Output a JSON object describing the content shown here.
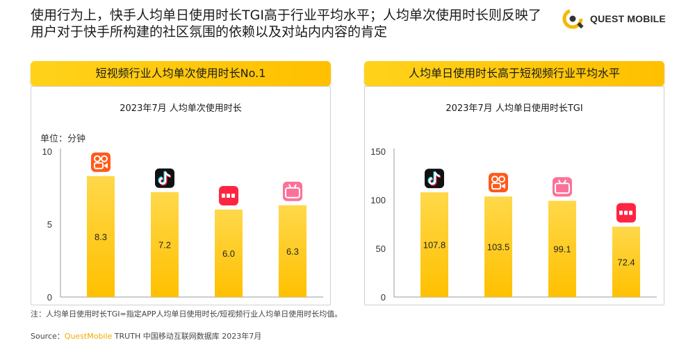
{
  "headline": "使用行为上，快手人均单日使用时长TGI高于行业平均水平；人均单次使用时长则反映了用户对于快手所构建的社区氛围的依赖以及对站内内容的肯定",
  "logo": {
    "text": "QUEST MOBILE",
    "icon": "quest-mobile-logo"
  },
  "left_panel": {
    "header": "短视频行业人均单次使用时长No.1",
    "chart_title": "2023年7月 人均单次使用时长",
    "unit": "单位：分钟"
  },
  "right_panel": {
    "header": "人均单日使用时长高于短视频行业平均水平",
    "chart_title": "2023年7月 人均单日使用时长TGI"
  },
  "note": "注：人均单日使用时长TGI=指定APP人均单日使用时长/短视频行业人均单日使用时长均值。",
  "source": {
    "prefix": "Source：",
    "brand": "QuestMobile",
    "suffix": " TRUTH 中国移动互联网数据库 2023年7月"
  },
  "colors": {
    "bar": "#ffc000",
    "bar_top": "#ffd84a",
    "pill": "#ffc000",
    "brand": "#f5a800"
  },
  "chart_data": [
    {
      "type": "bar",
      "title": "2023年7月 人均单次使用时长",
      "ylabel": "单位：分钟",
      "ylim": [
        0,
        10
      ],
      "yticks": [
        0,
        5,
        10
      ],
      "categories": [
        "kuaishou-icon",
        "douyin-icon",
        "xiaohongshu-icon",
        "bilibili-icon"
      ],
      "values": [
        8.3,
        7.2,
        6.0,
        6.3
      ],
      "data_labels": [
        "8.3",
        "7.2",
        "6.0",
        "6.3"
      ],
      "grid": false
    },
    {
      "type": "bar",
      "title": "2023年7月 人均单日使用时长TGI",
      "ylim": [
        0,
        150
      ],
      "yticks": [
        0,
        50,
        100,
        150
      ],
      "categories": [
        "douyin-icon",
        "kuaishou-icon",
        "bilibili-icon",
        "xiaohongshu-icon"
      ],
      "values": [
        107.8,
        103.5,
        99.1,
        72.4
      ],
      "data_labels": [
        "107.8",
        "103.5",
        "99.1",
        "72.4"
      ],
      "grid": false
    }
  ]
}
